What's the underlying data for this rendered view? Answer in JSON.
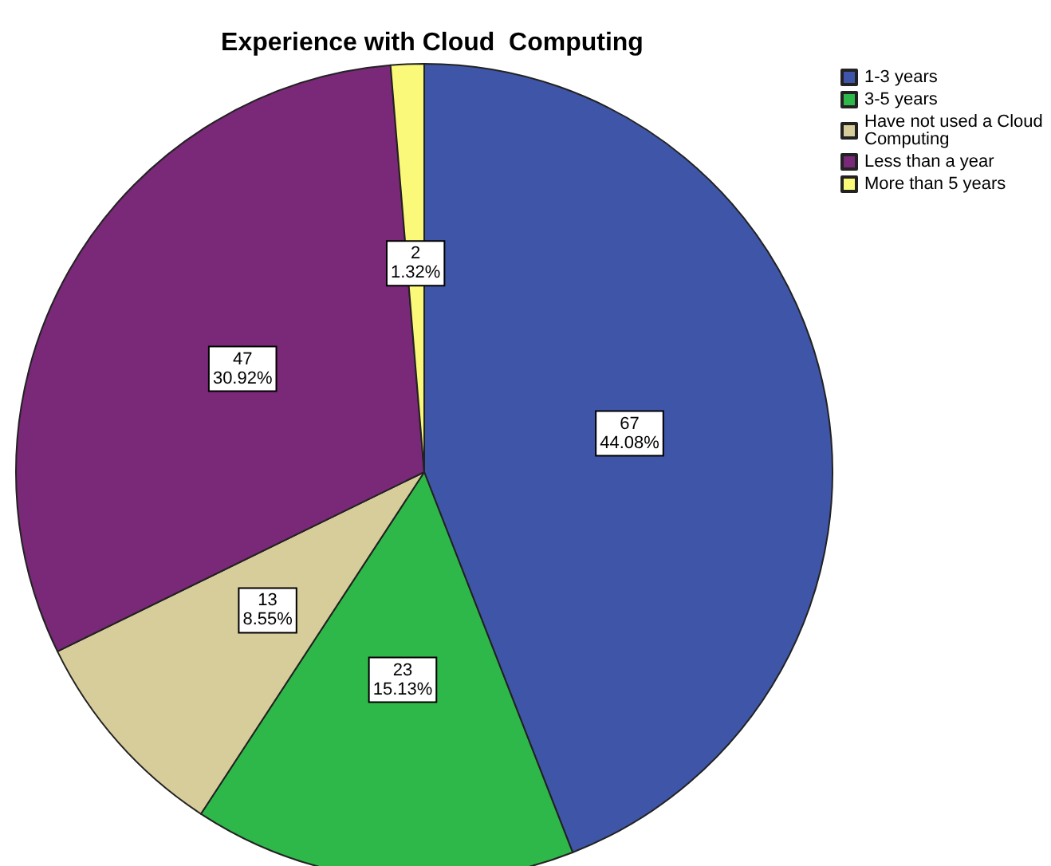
{
  "chart_data": {
    "type": "pie",
    "title": "Experience with Cloud  Computing",
    "categories": [
      "1-3 years",
      "3-5 years",
      "Have not used a Cloud Computing",
      "Less than a year",
      "More than 5 years"
    ],
    "values": [
      67,
      23,
      13,
      47,
      2
    ],
    "colors": [
      "#3f56a8",
      "#2fb84a",
      "#d6cd9b",
      "#7a2878",
      "#fbf97a"
    ],
    "value_labels": [
      "67\n44.08%",
      "23\n15.13%",
      "13\n8.55%",
      "47\n30.92%",
      "2\n1.32%"
    ],
    "legend": "top right"
  }
}
